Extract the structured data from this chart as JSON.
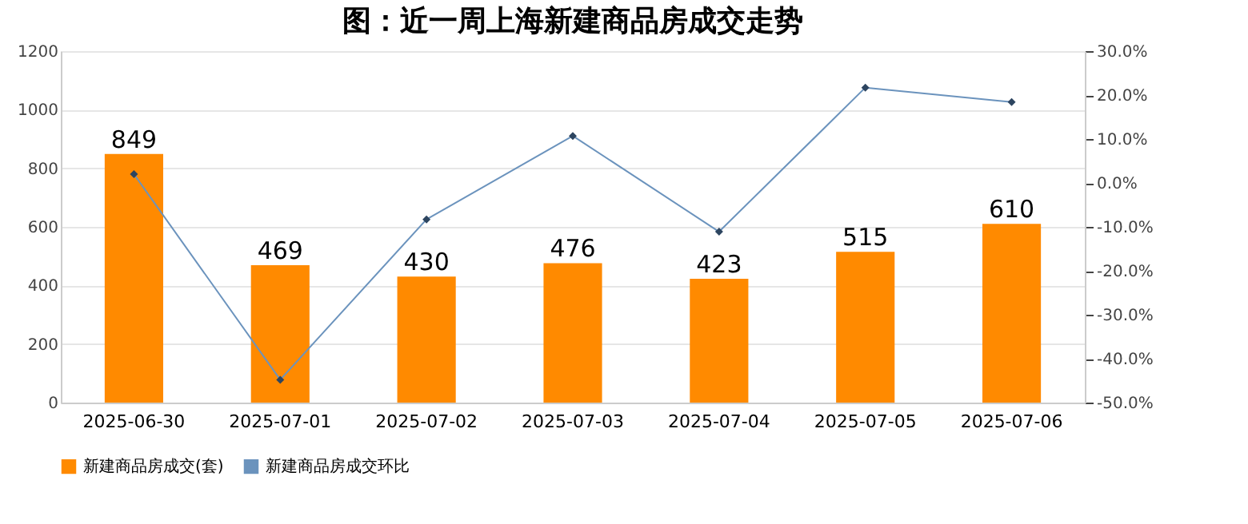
{
  "chart_data": {
    "type": "bar",
    "title": "图：近一周上海新建商品房成交走势",
    "categories": [
      "2025-06-30",
      "2025-07-01",
      "2025-07-02",
      "2025-07-03",
      "2025-07-04",
      "2025-07-05",
      "2025-07-06"
    ],
    "series": [
      {
        "name": "新建商品房成交(套)",
        "color": "#ff8a00",
        "values": [
          849,
          469,
          430,
          476,
          423,
          515,
          610
        ],
        "value_labels": [
          "849",
          "469",
          "430",
          "476",
          "423",
          "515",
          "610"
        ]
      },
      {
        "name": "新建商品房成交环比",
        "type": "line",
        "axis": "y2",
        "color": "#6b93bd",
        "marker": "diamond",
        "values": [
          2.0,
          -44.8,
          -8.3,
          10.7,
          -11.1,
          21.7,
          18.4
        ]
      }
    ],
    "ylim": [
      0,
      1200
    ],
    "yticks": [
      0,
      200,
      400,
      600,
      800,
      1000,
      1200
    ],
    "y2lim": [
      -50,
      30
    ],
    "y2ticks": [
      {
        "value": -50,
        "label": "-50.0%"
      },
      {
        "value": -40,
        "label": "-40.0%"
      },
      {
        "value": -30,
        "label": "-30.0%"
      },
      {
        "value": -20,
        "label": "-20.0%"
      },
      {
        "value": -10,
        "label": "-10.0%"
      },
      {
        "value": 0,
        "label": "0.0%"
      },
      {
        "value": 10,
        "label": "10.0%"
      },
      {
        "value": 20,
        "label": "20.0%"
      },
      {
        "value": 30,
        "label": "30.0%"
      }
    ],
    "grid": "y",
    "legend": "bottom"
  }
}
